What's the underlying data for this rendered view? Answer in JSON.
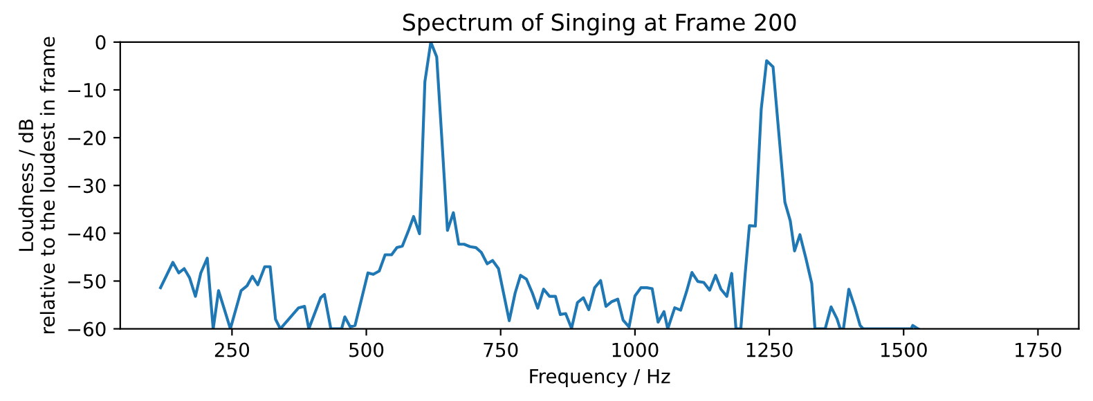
{
  "chart_data": {
    "type": "line",
    "title": "Spectrum of Singing at Frame 200",
    "xlabel": "Frequency / Hz",
    "ylabel": "Loudness / dB\nrelative to the loudest in frame",
    "xlim": [
      42,
      1826
    ],
    "ylim": [
      -60,
      0
    ],
    "xticks": [
      250,
      500,
      750,
      1000,
      1250,
      1500,
      1750
    ],
    "yticks": [
      -60,
      -50,
      -40,
      -30,
      -20,
      -10,
      0
    ],
    "marker": "none",
    "line_style": "solid",
    "series": [
      {
        "color": "#1f77b4",
        "x": [
          117,
          140,
          151,
          161,
          171,
          182,
          192,
          204,
          215,
          225,
          236,
          247,
          267,
          278,
          288,
          298,
          311,
          321,
          331,
          340,
          374,
          385,
          393,
          415,
          422,
          434,
          454,
          460,
          470,
          479,
          503,
          513,
          524,
          535,
          547,
          557,
          567,
          578,
          588,
          599,
          609,
          620,
          631,
          641,
          651,
          662,
          672,
          682,
          693,
          704,
          714,
          725,
          735,
          746,
          766,
          777,
          787,
          798,
          809,
          819,
          830,
          841,
          852,
          861,
          871,
          882,
          893,
          904,
          914,
          925,
          936,
          946,
          957,
          968,
          978,
          989,
          1000,
          1011,
          1022,
          1032,
          1043,
          1054,
          1061,
          1074,
          1085,
          1096,
          1106,
          1117,
          1128,
          1139,
          1150,
          1160,
          1171,
          1180,
          1188,
          1197,
          1205,
          1213,
          1224,
          1235,
          1245,
          1257,
          1268,
          1279,
          1289,
          1297,
          1307,
          1318,
          1329,
          1335,
          1354,
          1365,
          1376,
          1382,
          1388,
          1398,
          1409,
          1419,
          1425,
          1514,
          1517,
          1524,
          1527
        ],
        "values": [
          -51.4,
          -46.1,
          -48.3,
          -47.4,
          -49.3,
          -53.2,
          -48.3,
          -45.2,
          -60,
          -52,
          -56,
          -60,
          -52,
          -51,
          -49,
          -50.8,
          -47,
          -47,
          -58,
          -60,
          -55.6,
          -55.3,
          -60,
          -53.5,
          -52.8,
          -60,
          -60,
          -57.5,
          -59.6,
          -59.3,
          -48.3,
          -48.6,
          -47.9,
          -44.5,
          -44.5,
          -43,
          -42.7,
          -39.6,
          -36.5,
          -40.1,
          -8.3,
          0,
          -3.1,
          -21,
          -39.4,
          -35.7,
          -42.3,
          -42.3,
          -42.8,
          -43,
          -44,
          -46.4,
          -45.7,
          -47.4,
          -58.3,
          -52.5,
          -48.8,
          -49.6,
          -52.5,
          -55.7,
          -51.7,
          -53.2,
          -53.2,
          -57,
          -56.8,
          -59.9,
          -54.5,
          -53.5,
          -56,
          -51.4,
          -49.9,
          -55.3,
          -54.3,
          -53.8,
          -58.2,
          -59.6,
          -53.1,
          -51.4,
          -51.4,
          -51.6,
          -58.6,
          -56.4,
          -60,
          -55.6,
          -56.1,
          -52.2,
          -48.2,
          -50.1,
          -50.3,
          -51.9,
          -48.8,
          -51.7,
          -53.2,
          -48.4,
          -60,
          -60,
          -48.6,
          -38.4,
          -38.5,
          -14,
          -3.9,
          -5.2,
          -19.4,
          -33.5,
          -37.4,
          -43.7,
          -40.3,
          -45.2,
          -50.5,
          -60,
          -60,
          -55.4,
          -57.9,
          -60,
          -60,
          -51.7,
          -55.4,
          -59.3,
          -60,
          -60,
          -59.3,
          -59.8,
          -60
        ]
      }
    ]
  }
}
